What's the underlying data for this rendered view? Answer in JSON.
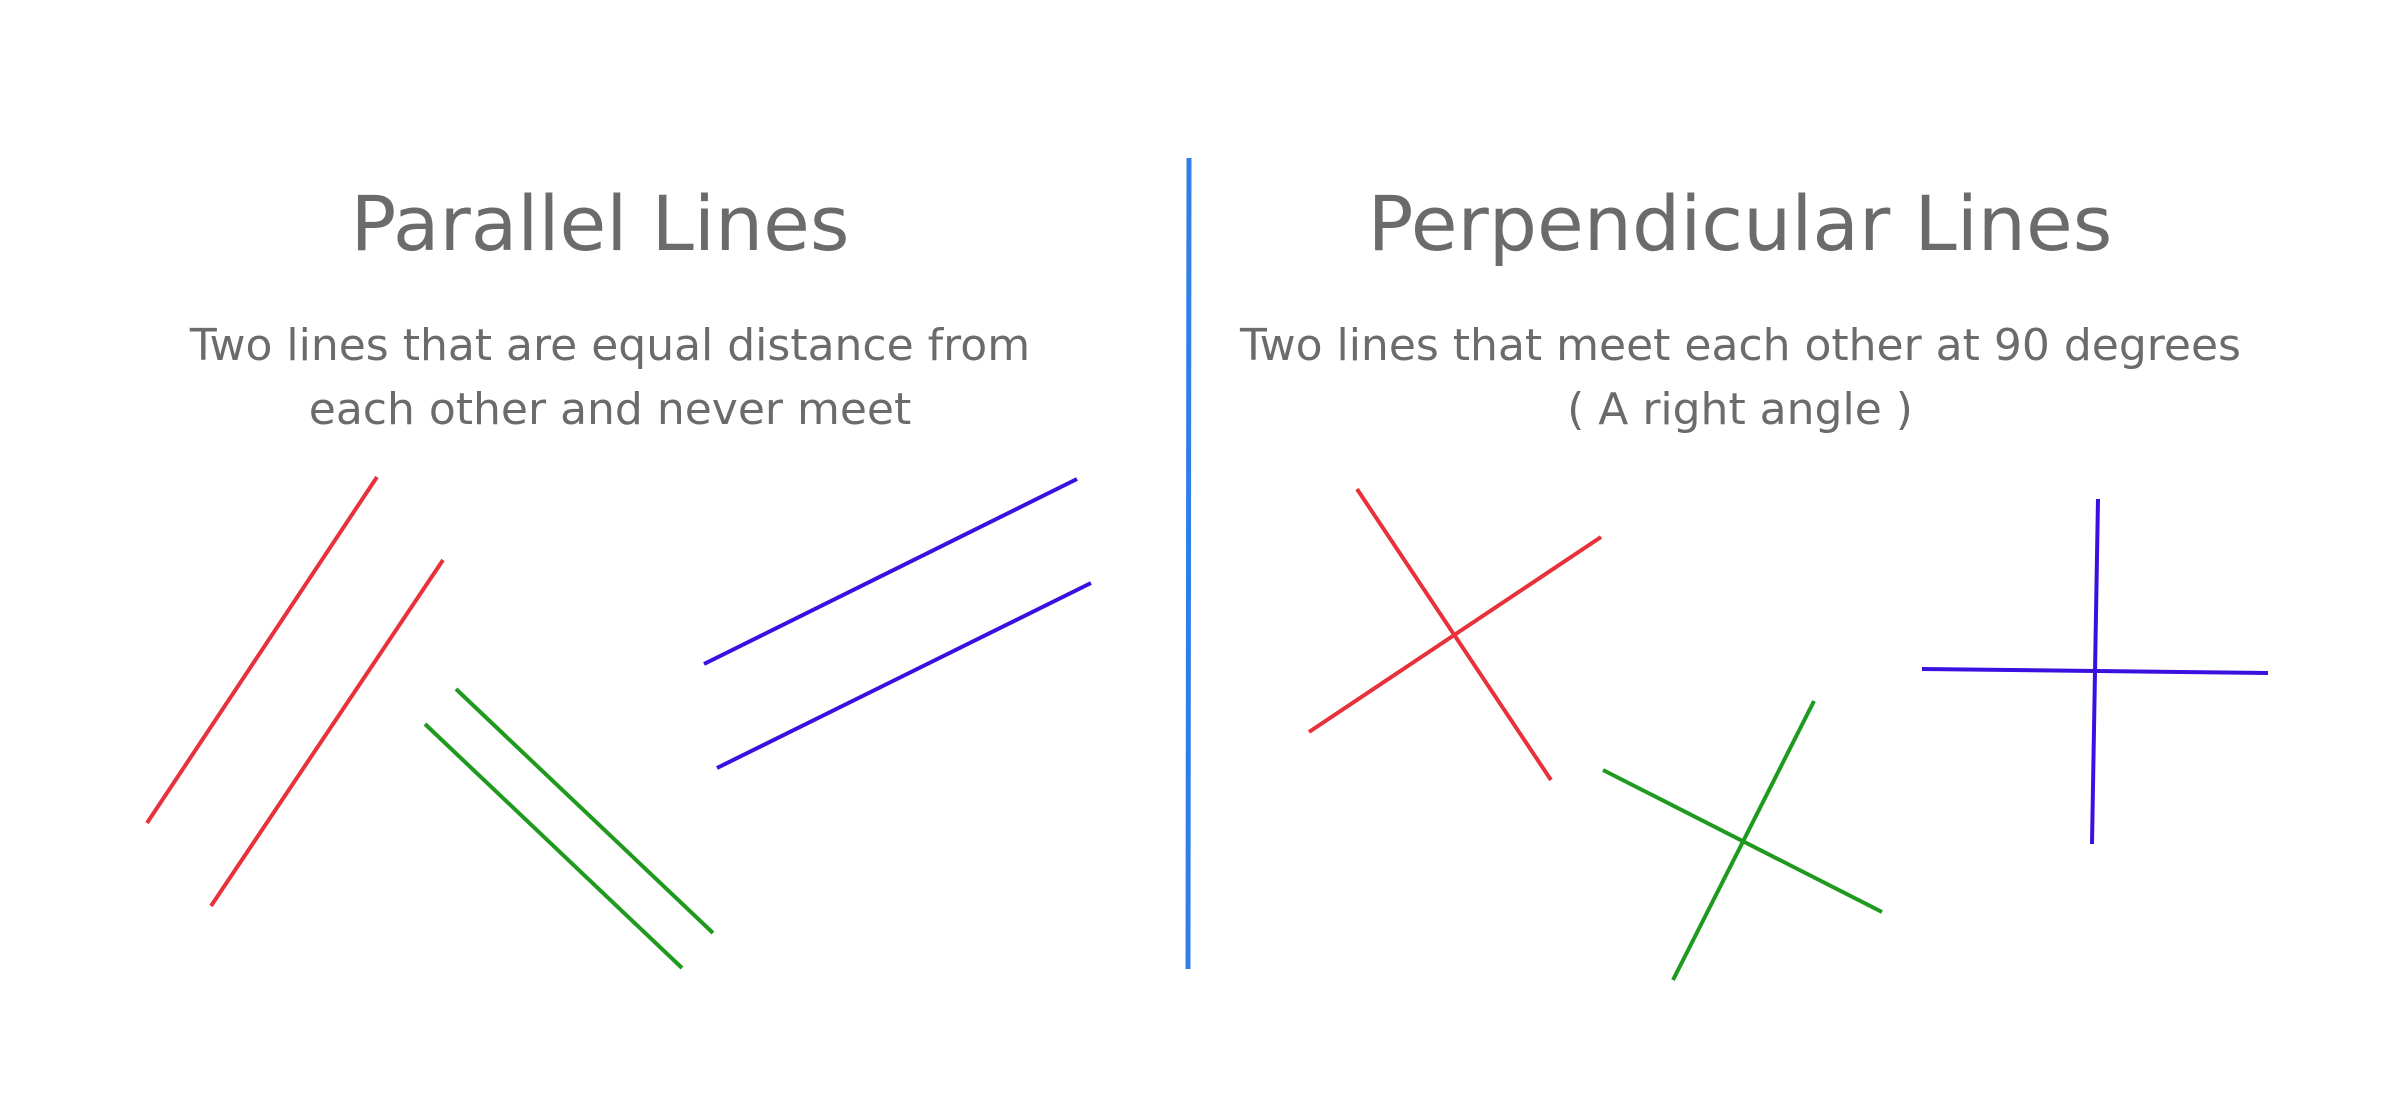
{
  "parallel": {
    "title": "Parallel Lines",
    "description_line1": "Two lines that are equal distance from",
    "description_line2": "each other and never meet"
  },
  "perpendicular": {
    "title": "Perpendicular Lines",
    "description_line1": "Two lines that meet each other at 90 degrees",
    "description_line2": "( A right angle )"
  },
  "colors": {
    "divider": "#2f7fe6",
    "red": "#e8313a",
    "green": "#1f9a1f",
    "blue": "#3a10e0",
    "text": "#6b6b6b"
  }
}
